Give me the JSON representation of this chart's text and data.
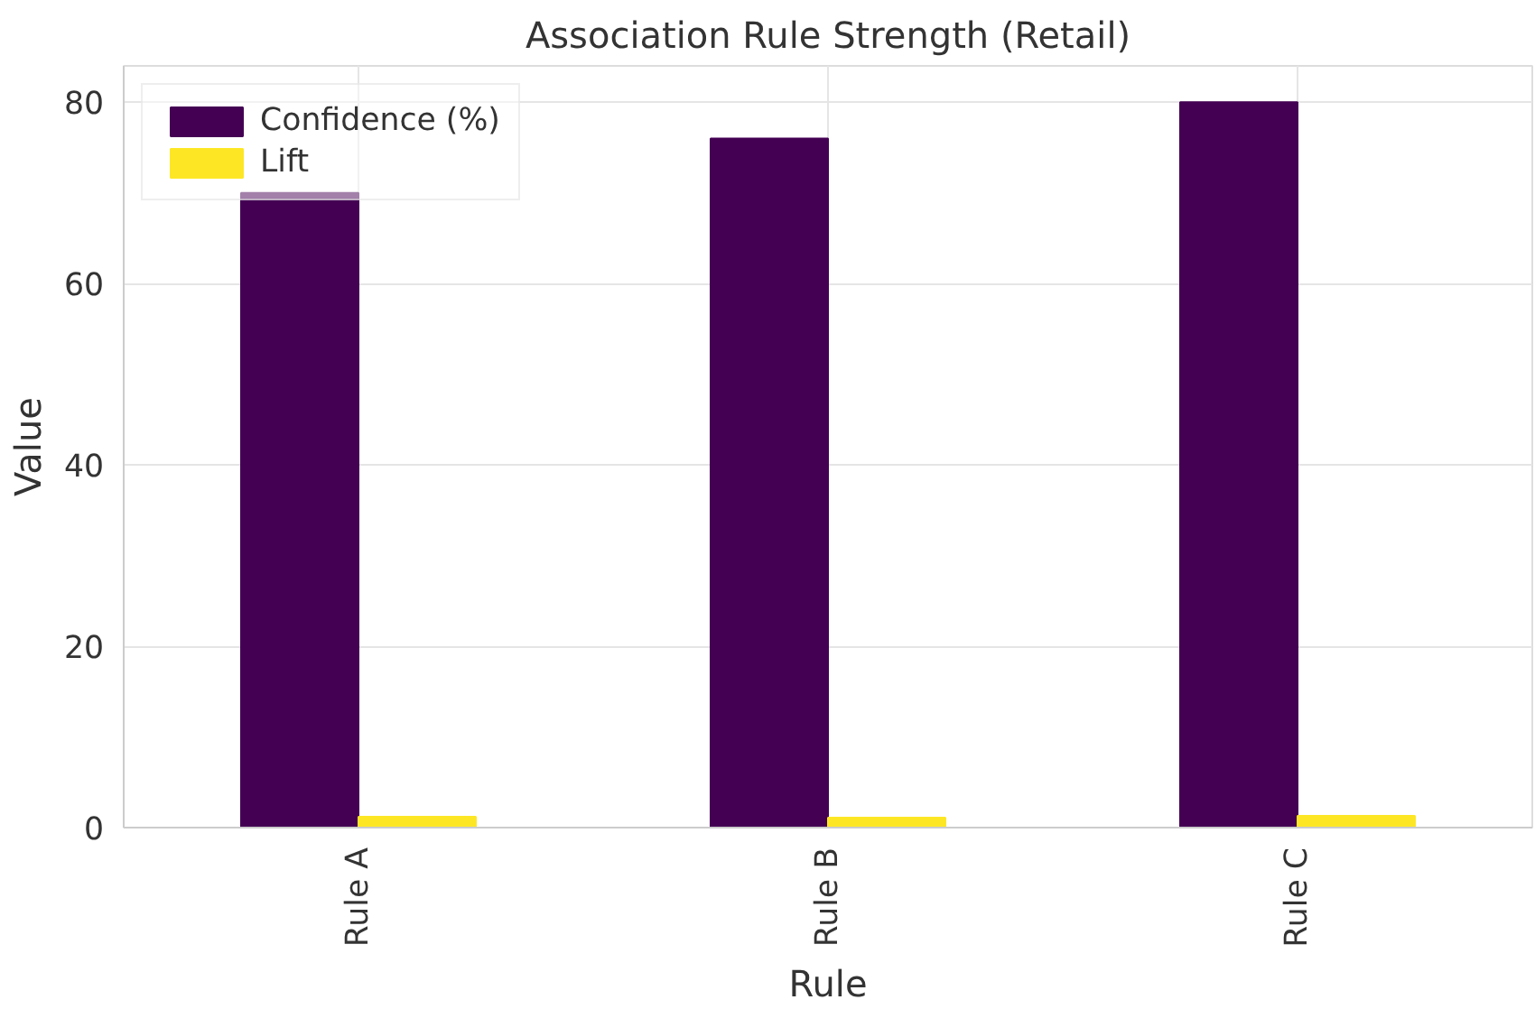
{
  "chart_data": {
    "type": "bar",
    "title": "Association Rule Strength (Retail)",
    "xlabel": "Rule",
    "ylabel": "Value",
    "categories": [
      "Rule A",
      "Rule B",
      "Rule C"
    ],
    "series": [
      {
        "name": "Confidence (%)",
        "color": "#440154",
        "values": [
          70,
          76,
          80
        ]
      },
      {
        "name": "Lift",
        "color": "#fde725",
        "values": [
          1.2,
          1.1,
          1.3
        ]
      }
    ],
    "ylim": [
      0,
      84
    ],
    "yticks": [
      0,
      20,
      40,
      60,
      80
    ],
    "grid": true,
    "legend": "top left"
  }
}
